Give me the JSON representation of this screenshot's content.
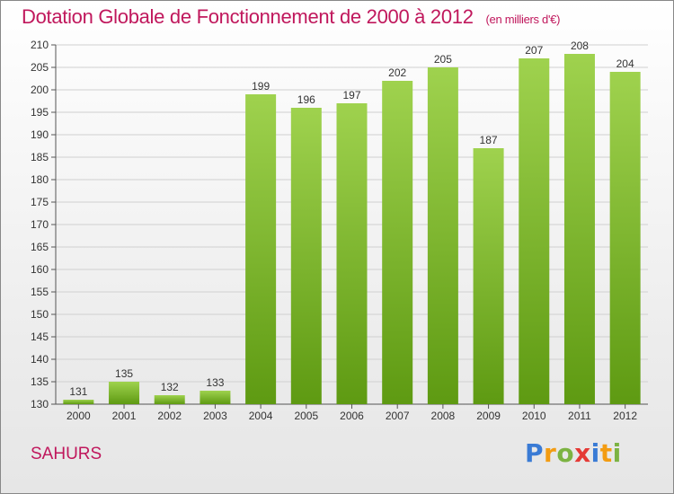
{
  "header": {
    "title": "Dotation Globale de Fonctionnement de 2000 à 2012",
    "subtitle": "(en milliers d'€)"
  },
  "footer": {
    "commune": "SAHURS",
    "logo_letters": [
      "P",
      "r",
      "o",
      "x",
      "i",
      "t",
      "i"
    ],
    "logo_colors": [
      "#3a7bd5",
      "#f39c12",
      "#7cb342",
      "#e53935",
      "#3a7bd5",
      "#f39c12",
      "#7cb342"
    ]
  },
  "colors": {
    "bar_top": "#9fd24e",
    "bar_bottom": "#5e9a12",
    "title": "#c0175c",
    "grid": "#d0d0d0"
  },
  "chart_data": {
    "type": "bar",
    "categories": [
      "2000",
      "2001",
      "2002",
      "2003",
      "2004",
      "2005",
      "2006",
      "2007",
      "2008",
      "2009",
      "2010",
      "2011",
      "2012"
    ],
    "values": [
      131,
      135,
      132,
      133,
      199,
      196,
      197,
      202,
      205,
      187,
      207,
      208,
      204
    ],
    "title": "Dotation Globale de Fonctionnement de 2000 à 2012",
    "subtitle": "(en milliers d'€)",
    "xlabel": "",
    "ylabel": "",
    "ylim": [
      130,
      210
    ],
    "ytick_step": 5,
    "grid": true
  }
}
